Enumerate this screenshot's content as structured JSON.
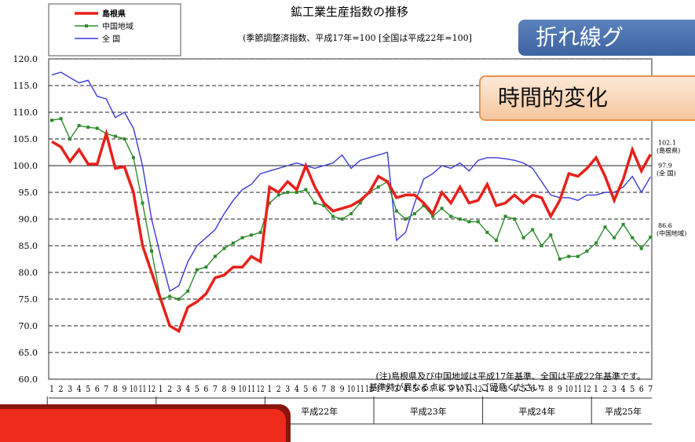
{
  "chart_data": {
    "type": "line",
    "title": "鉱工業生産指数の推移",
    "subtitle": "(季節調整済指数、平成17年=100 [全国は平成22年=100]",
    "note": [
      "(注)島根県及び中国地域は平成17年基準、全国は平成22年基準です。",
      "基準時が異なる点について、ご留意ください。"
    ],
    "categories": [
      "1",
      "2",
      "3",
      "4",
      "5",
      "6",
      "7",
      "8",
      "9",
      "10",
      "11",
      "12",
      "1",
      "2",
      "3",
      "4",
      "5",
      "6",
      "7",
      "8",
      "9",
      "10",
      "11",
      "12",
      "1",
      "2",
      "3",
      "4",
      "5",
      "6",
      "7",
      "8",
      "9",
      "10",
      "11",
      "12",
      "1",
      "2",
      "3",
      "4",
      "5",
      "6",
      "7",
      "8",
      "9",
      "10",
      "11",
      "12",
      "1",
      "2",
      "3",
      "4",
      "5",
      "6",
      "7",
      "8",
      "9",
      "10",
      "11",
      "12",
      "1",
      "2",
      "3",
      "4",
      "5",
      "6",
      "7"
    ],
    "x_group_labels": [
      "平成22年",
      "平成23年",
      "平成24年",
      "平成25年"
    ],
    "series": [
      {
        "name": "島根県",
        "color": "#e8201a",
        "end_label": "(島根県)",
        "values": [
          104.5,
          103.5,
          100.8,
          103,
          100.3,
          100.3,
          106,
          99.5,
          99.8,
          95,
          85,
          80,
          75,
          70,
          69,
          73.5,
          74.5,
          76,
          79,
          79.5,
          81,
          81,
          83,
          82,
          96,
          95,
          97,
          95.5,
          100,
          96,
          93,
          91.5,
          92,
          92.5,
          93.5,
          95,
          98,
          97,
          94,
          94.5,
          94.5,
          93,
          91,
          95,
          93,
          96,
          93,
          93.5,
          96.5,
          92.5,
          93,
          94.5,
          93,
          94.5,
          94,
          90.5,
          93.5,
          98.5,
          98,
          99.5,
          101.5,
          98,
          93.5,
          97.5,
          103,
          99,
          102.1
        ]
      },
      {
        "name": "中国地域",
        "color": "#2e8b2e",
        "end_label": "(中国地域)",
        "values": [
          108.5,
          108.8,
          105,
          107.5,
          107.2,
          107,
          106,
          105.5,
          105,
          101.5,
          93,
          84,
          75,
          75.5,
          75,
          76.5,
          80.5,
          81,
          83,
          84.5,
          85.5,
          86.5,
          87,
          87.5,
          93,
          94.5,
          95,
          95,
          95.5,
          93,
          92.5,
          90.5,
          90,
          91,
          93,
          95,
          96,
          97,
          91.5,
          90,
          91,
          92.5,
          90.5,
          92,
          90.5,
          90,
          89.5,
          89.5,
          87.5,
          86,
          90.5,
          90,
          86.5,
          88,
          85,
          87,
          82.5,
          83,
          83,
          84,
          85.5,
          88.5,
          86.5,
          89,
          86.5,
          84.5,
          86.6
        ]
      },
      {
        "name": "全 国",
        "color": "#3a3ad8",
        "end_label": "(全 国)",
        "values": [
          117,
          117.5,
          116.5,
          115.5,
          116,
          113,
          112.5,
          109,
          110,
          107,
          100,
          90,
          83,
          76.5,
          77.5,
          82,
          85,
          86.5,
          88,
          91,
          93.5,
          95.5,
          96.5,
          98.5,
          99,
          99.5,
          100,
          100.5,
          100,
          99.5,
          100,
          100.5,
          102,
          99.5,
          101,
          101.5,
          102,
          102.5,
          86,
          87.5,
          93,
          97.5,
          98.5,
          100,
          99.5,
          100.5,
          99,
          101,
          101.5,
          101.5,
          101.3,
          101,
          100.5,
          99.5,
          97,
          94.5,
          94,
          94,
          93.5,
          94.5,
          94.5,
          95,
          95,
          96,
          98,
          95,
          97.9
        ]
      }
    ],
    "ylim": [
      60,
      120
    ],
    "yticks": [
      {
        "value": 60,
        "label": "60.0"
      },
      {
        "value": 65,
        "label": "65.0"
      },
      {
        "value": 70,
        "label": "70.0"
      },
      {
        "value": 75,
        "label": "75.0"
      },
      {
        "value": 80,
        "label": "80.0"
      },
      {
        "value": 85,
        "label": "85.0"
      },
      {
        "value": 90,
        "label": "90.0"
      },
      {
        "value": 95,
        "label": "95.0"
      },
      {
        "value": 100,
        "label": "100.0"
      },
      {
        "value": 105,
        "label": "105.0"
      },
      {
        "value": 110,
        "label": "110.0"
      },
      {
        "value": 115,
        "label": "115.0"
      },
      {
        "value": 120,
        "label": "120.0"
      }
    ],
    "grid": true
  },
  "overlays": {
    "blue_box": "折れ線グ",
    "orange_box": "時間的変化"
  }
}
